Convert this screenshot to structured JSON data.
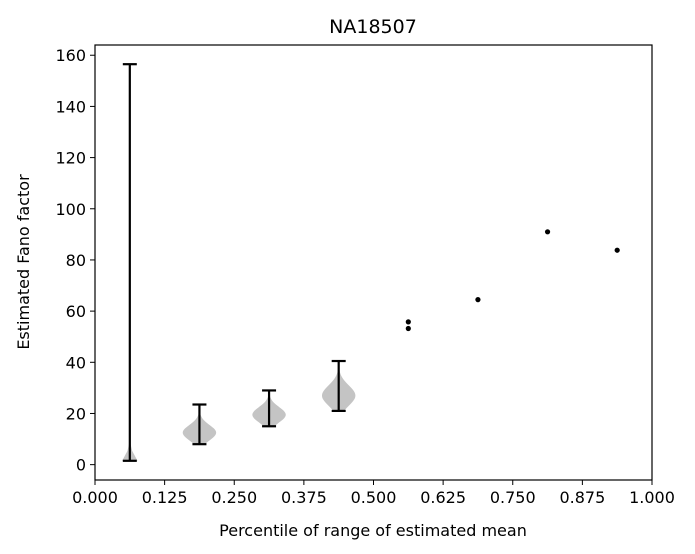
{
  "chart_data": {
    "type": "violin",
    "title": "NA18507",
    "xlabel": "Percentile of range of estimated mean",
    "ylabel": "Estimated Fano factor",
    "xlim": [
      0,
      1
    ],
    "ylim": [
      -6,
      164
    ],
    "x_ticks": [
      "0.000",
      "0.125",
      "0.250",
      "0.375",
      "0.500",
      "0.625",
      "0.750",
      "0.875",
      "1.000"
    ],
    "y_ticks": [
      "0",
      "20",
      "40",
      "60",
      "80",
      "100",
      "120",
      "140",
      "160"
    ],
    "violin_color": "#c4c4c4",
    "line_color": "#000000",
    "violins": [
      {
        "x": 0.0625,
        "min": 1.5,
        "max": 156.5,
        "density_center": 3.0,
        "density_spread": 1.2,
        "max_half_width": 0.03
      },
      {
        "x": 0.1875,
        "min": 8.0,
        "max": 23.5,
        "density_center": 12.5,
        "density_spread": 3.0,
        "max_half_width": 0.03
      },
      {
        "x": 0.3125,
        "min": 15.0,
        "max": 29.0,
        "density_center": 19.5,
        "density_spread": 3.0,
        "max_half_width": 0.03
      },
      {
        "x": 0.4375,
        "min": 21.0,
        "max": 40.5,
        "density_center": 27.0,
        "density_spread": 4.0,
        "max_half_width": 0.03
      }
    ],
    "points": [
      {
        "x": 0.5625,
        "y": 55.8
      },
      {
        "x": 0.5625,
        "y": 53.2
      },
      {
        "x": 0.6875,
        "y": 64.5
      },
      {
        "x": 0.8125,
        "y": 91.0
      },
      {
        "x": 0.9375,
        "y": 83.8
      }
    ]
  }
}
